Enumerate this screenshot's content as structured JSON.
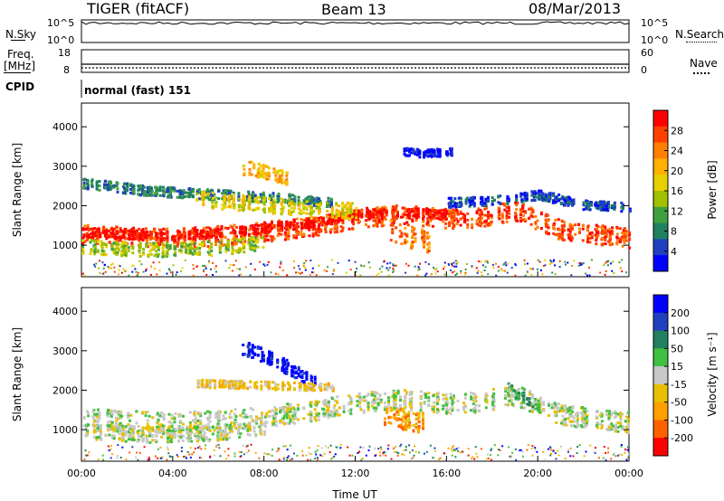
{
  "header": {
    "station": "TIGER (fitACF)",
    "beam": "Beam 13",
    "date": "08/Mar/2013"
  },
  "top_panels": {
    "nsky_label": "N.Sky",
    "nsky_ticks": [
      "10^5",
      "10^0"
    ],
    "nsearch_label": "N.Search",
    "nsearch_ticks": [
      "10^5",
      "10^0"
    ],
    "freq_label": "Freq.",
    "freq_unit": "[MHz]",
    "freq_ticks": [
      "18",
      "8"
    ],
    "nave_label": "Nave",
    "nave_ticks": [
      "60",
      "0"
    ],
    "cpid_label": "CPID",
    "cpid_text": "normal (fast) 151"
  },
  "chart_data": [
    {
      "type": "heatmap",
      "name": "power",
      "ylabel": "Slant Range [km]",
      "ylim": [
        200,
        4600
      ],
      "yticks": [
        1000,
        2000,
        3000,
        4000
      ],
      "xlim": [
        0,
        24
      ],
      "colorbar": {
        "label": "Power [dB]",
        "ticks": [
          "28",
          "24",
          "20",
          "16",
          "12",
          "8",
          "4"
        ],
        "colors": [
          "#ff0000",
          "#ff4000",
          "#ff8000",
          "#ffb000",
          "#e8d000",
          "#a0c000",
          "#40a040",
          "#208060",
          "#2040c0",
          "#0000ff"
        ]
      },
      "bands": [
        {
          "t": [
            0,
            4,
            7,
            10,
            12,
            14,
            16,
            17,
            19,
            21,
            24
          ],
          "r": [
            1300,
            1200,
            1300,
            1500,
            1700,
            1800,
            1700,
            1700,
            1900,
            1400,
            1200
          ],
          "w": 250,
          "ci": 1
        },
        {
          "t": [
            0,
            4,
            7,
            10,
            12,
            14,
            16
          ],
          "r": [
            1350,
            1250,
            1400,
            1600,
            1800,
            1850,
            1800
          ],
          "w": 120,
          "ci": 0
        },
        {
          "t": [
            0,
            3,
            6,
            8
          ],
          "r": [
            1000,
            900,
            950,
            1100
          ],
          "w": 180,
          "ci": 5
        },
        {
          "t": [
            0,
            3,
            6,
            9,
            11
          ],
          "r": [
            2600,
            2400,
            2300,
            2200,
            2100
          ],
          "w": 130,
          "ci": 7
        },
        {
          "t": [
            5,
            7,
            9,
            11,
            12
          ],
          "r": [
            2200,
            2100,
            2000,
            1900,
            1900
          ],
          "w": 200,
          "ci": 4
        },
        {
          "t": [
            16,
            18,
            20,
            22,
            24
          ],
          "r": [
            2100,
            2150,
            2300,
            2050,
            2000
          ],
          "w": 120,
          "ci": 8
        },
        {
          "t": [
            13.5,
            14.5,
            15.2
          ],
          "r": [
            1400,
            1200,
            1100
          ],
          "w": 280,
          "ci": 2
        },
        {
          "t": [
            7,
            8,
            9
          ],
          "r": [
            3000,
            2900,
            2700
          ],
          "w": 180,
          "ci": 3
        },
        {
          "t": [
            14,
            15,
            16.5
          ],
          "r": [
            3400,
            3350,
            3400
          ],
          "w": 100,
          "ci": 9
        }
      ]
    },
    {
      "type": "heatmap",
      "name": "velocity",
      "ylabel": "Slant Range [km]",
      "ylim": [
        200,
        4600
      ],
      "yticks": [
        1000,
        2000,
        3000,
        4000
      ],
      "xlim": [
        0,
        24
      ],
      "xticks": [
        "00:00",
        "04:00",
        "08:00",
        "12:00",
        "16:00",
        "20:00",
        "00:00"
      ],
      "xlabel": "Time UT",
      "colorbar": {
        "label": "Velocity [m s⁻¹]",
        "ticks": [
          "200",
          "100",
          "50",
          "15",
          "-15",
          "-50",
          "-100",
          "-200"
        ],
        "colors": [
          "#0000ff",
          "#2040c0",
          "#208060",
          "#40c040",
          "#c8c8c8",
          "#e8c000",
          "#ffa000",
          "#ff6000",
          "#ff0000"
        ]
      },
      "bands": [
        {
          "t": [
            0,
            4,
            7,
            10,
            12,
            14,
            16,
            17,
            19,
            21,
            24
          ],
          "r": [
            1300,
            1200,
            1300,
            1500,
            1700,
            1800,
            1700,
            1700,
            1900,
            1400,
            1200
          ],
          "w": 260,
          "ci": 4
        },
        {
          "t": [
            0,
            3,
            6,
            8
          ],
          "r": [
            1000,
            900,
            950,
            1100
          ],
          "w": 200,
          "ci": 4
        },
        {
          "t": [
            13,
            14,
            15
          ],
          "r": [
            1400,
            1300,
            1200
          ],
          "w": 260,
          "ci": 6
        },
        {
          "t": [
            7,
            8,
            9,
            10,
            10.5
          ],
          "r": [
            3100,
            2900,
            2600,
            2300,
            2000
          ],
          "w": 180,
          "ci": 0
        },
        {
          "t": [
            18.5,
            19.5,
            20
          ],
          "r": [
            2100,
            1800,
            1600
          ],
          "w": 150,
          "ci": 3
        },
        {
          "t": [
            5,
            8,
            11
          ],
          "r": [
            2200,
            2150,
            2100
          ],
          "w": 100,
          "ci": 5
        }
      ]
    }
  ]
}
